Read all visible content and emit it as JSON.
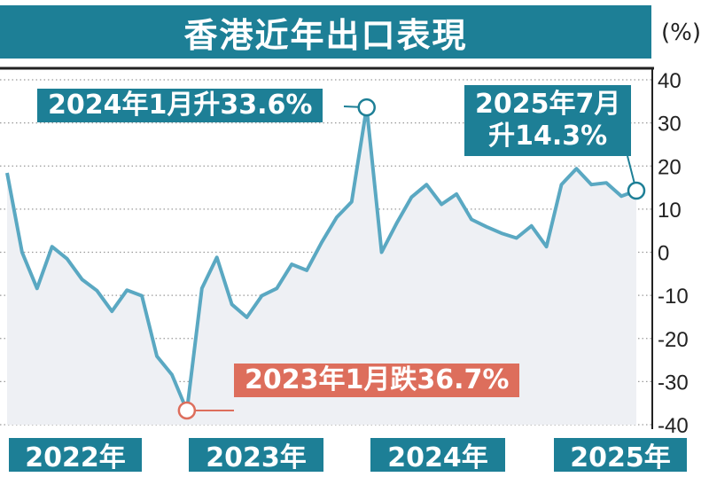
{
  "title": "香港近年出口表現",
  "unit": "(%)",
  "annotations": {
    "jan2024": "2024年1月升33.6%",
    "jul2025_line1": "2025年7月",
    "jul2025_line2": "升14.3%",
    "jan2023": "2023年1月跌36.7%"
  },
  "colors": {
    "accent": "#1d7f96",
    "line": "#5aa8c2",
    "area": "#eef0f4",
    "negative": "#dd6e5c"
  },
  "chart_data": {
    "type": "line",
    "title": "香港近年出口表現",
    "ylabel": "(%)",
    "ylim": [
      -40,
      40
    ],
    "yticks": [
      40,
      30,
      20,
      10,
      0,
      -10,
      -20,
      -30,
      -40
    ],
    "ytick_labels": [
      "40",
      "30",
      "20",
      "10",
      "0",
      "-10",
      "-20",
      "-30",
      "-40"
    ],
    "year_labels": [
      "2022年",
      "2023年",
      "2024年",
      "2025年"
    ],
    "grid": true,
    "series": [
      {
        "x": [
          "2022-01",
          "2022-02",
          "2022-03",
          "2022-04",
          "2022-05",
          "2022-06",
          "2022-07",
          "2022-08",
          "2022-09",
          "2022-10",
          "2022-11",
          "2022-12",
          "2023-01",
          "2023-02",
          "2023-03",
          "2023-04",
          "2023-05",
          "2023-06",
          "2023-07",
          "2023-08",
          "2023-09",
          "2023-10",
          "2023-11",
          "2023-12",
          "2024-01",
          "2024-02",
          "2024-03",
          "2024-04",
          "2024-05",
          "2024-06",
          "2024-07",
          "2024-08",
          "2024-09",
          "2024-10",
          "2024-11",
          "2024-12",
          "2025-01",
          "2025-02",
          "2025-03",
          "2025-04",
          "2025-05",
          "2025-06",
          "2025-07"
        ],
        "values": [
          18.4,
          0,
          -8.4,
          1.3,
          -1.5,
          -6.3,
          -8.9,
          -13.7,
          -8.8,
          -10.1,
          -24.1,
          -28.4,
          -36.7,
          -8.4,
          -1.2,
          -12.1,
          -15.1,
          -10.1,
          -8.4,
          -2.8,
          -4.2,
          2.3,
          8.1,
          11.7,
          33.6,
          0.0,
          6.7,
          12.8,
          15.7,
          11.1,
          13.5,
          7.6,
          5.9,
          4.4,
          3.3,
          6.1,
          1.3,
          15.7,
          19.4,
          15.7,
          16.1,
          13.0,
          14.3
        ]
      }
    ]
  }
}
